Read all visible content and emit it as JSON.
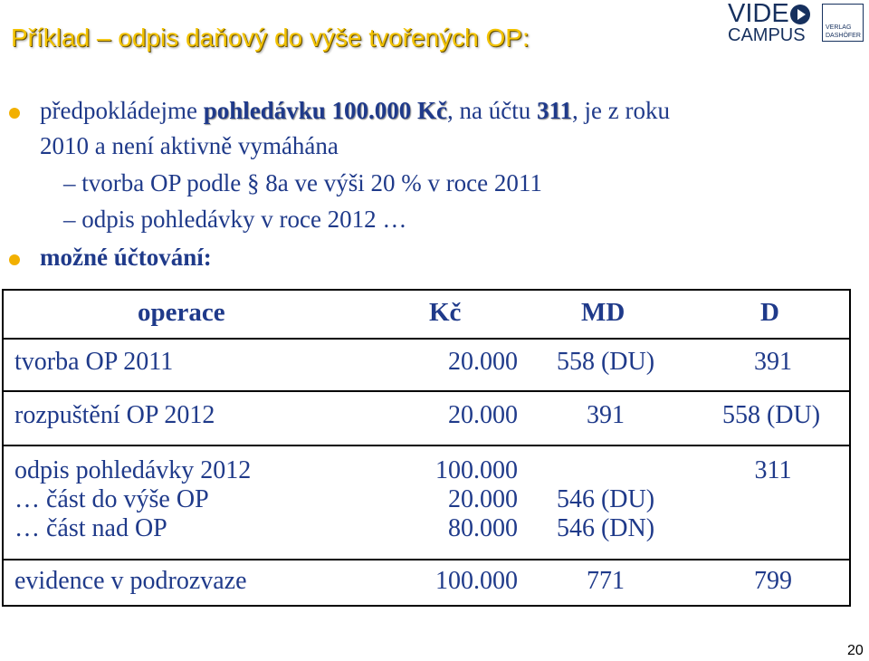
{
  "slide": {
    "title": "Příklad – odpis daňový do výše tvořených OP:",
    "page_number": "20"
  },
  "logo": {
    "video": "VIDE",
    "campus": "CAMPUS",
    "verlag": "VERLAG",
    "dashofer": "DASHÖFER"
  },
  "bullets": {
    "b1_pre": "předpokládejme ",
    "b1_hl1": "pohledávku 100.000 Kč",
    "b1_mid": ", na účtu ",
    "b1_hl2": "311",
    "b1_post": ", je z roku",
    "b1_line2": "2010 a není aktivně vymáhána",
    "sub1": "– tvorba OP podle § 8a ve výši 20 % v roce 2011",
    "sub2": "– odpis pohledávky v roce 2012 …",
    "b2": "možné účtování:"
  },
  "table": {
    "headers": {
      "operace": "operace",
      "kc": "Kč",
      "md": "MD",
      "d": "D"
    },
    "row1": {
      "operace": "tvorba OP 2011",
      "kc": "20.000",
      "md": "558 (DU)",
      "d": "391"
    },
    "row2": {
      "operace": "rozpuštění OP 2012",
      "kc": "20.000",
      "md": "391",
      "d": "558 (DU)"
    },
    "row3": {
      "operace_1": "odpis pohledávky 2012",
      "operace_2": "… část do výše OP",
      "operace_3": "… část nad OP",
      "kc_1": "100.000",
      "kc_2": "20.000",
      "kc_3": "80.000",
      "md_2": "546 (DU)",
      "md_3": "546 (DN)",
      "d_1": "311"
    },
    "row4": {
      "operace": "evidence v podrozvaze",
      "kc": "100.000",
      "md": "771",
      "d": "799"
    }
  },
  "colors": {
    "title": "#f2c200",
    "text": "#1f3a8a",
    "bullet": "#f2b000",
    "logo": "#16305e"
  }
}
